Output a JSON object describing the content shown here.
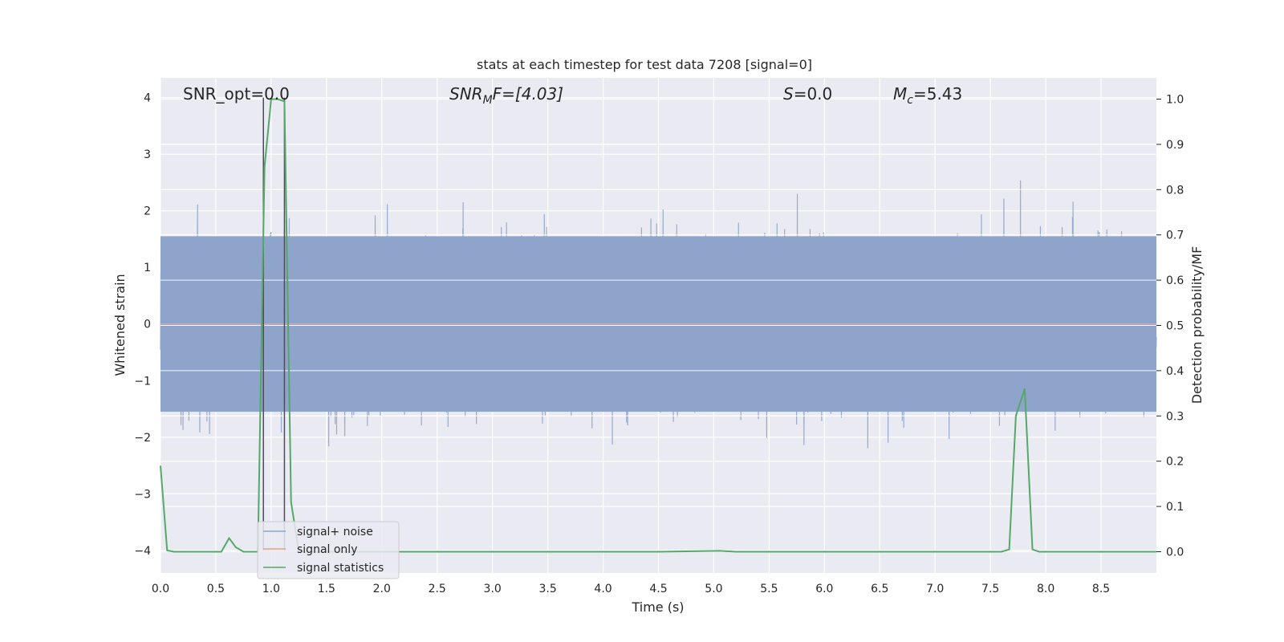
{
  "chart_data": {
    "type": "line",
    "title": "stats at each timestep for test data 7208 [signal=0]",
    "xlabel": "Time (s)",
    "ylabel": "Whitened strain",
    "ylabel_right": "Detection probability/MF",
    "xlim": [
      0.0,
      9.0
    ],
    "ylim": [
      -4.4,
      4.35
    ],
    "ylim_right": [
      -0.047,
      1.047
    ],
    "x_ticks": [
      "0.0",
      "0.5",
      "1.0",
      "1.5",
      "2.0",
      "2.5",
      "3.0",
      "3.5",
      "4.0",
      "4.5",
      "5.0",
      "5.5",
      "6.0",
      "6.5",
      "7.0",
      "7.5",
      "8.0",
      "8.5"
    ],
    "y_ticks": [
      "4",
      "3",
      "2",
      "1",
      "0",
      "−1",
      "−2",
      "−3",
      "−4"
    ],
    "y_ticks_right": [
      "1.0",
      "0.9",
      "0.8",
      "0.7",
      "0.6",
      "0.5",
      "0.4",
      "0.3",
      "0.2",
      "0.1",
      "0.0"
    ],
    "grid": true,
    "legend_position": "lower-left",
    "annotations": {
      "snr_opt": "SNR_opt=0.0",
      "snr_mf_sym": "SNR",
      "snr_mf_sub": "M",
      "snr_mf_rest": "F=[4.03]",
      "s_sym": "S",
      "s_rest": "=0.0",
      "mc_sym": "M",
      "mc_sub": "c",
      "mc_rest": "=5.43"
    },
    "vertical_lines_x": [
      0.93,
      1.12
    ],
    "series": [
      {
        "name": "signal+ noise",
        "color": "#8fa4cb",
        "kind": "noise",
        "sample_rate_hz": 600,
        "envelope_abs": 1.55,
        "max": 4.0,
        "min": -4.0
      },
      {
        "name": "signal only",
        "color": "#e8a089",
        "x": [
          0.0,
          9.0
        ],
        "y": [
          0.0,
          0.0
        ]
      },
      {
        "name": "signal statistics",
        "color": "#55a868",
        "axis": "right",
        "x": [
          0.0,
          0.06,
          0.12,
          0.25,
          0.55,
          0.62,
          0.68,
          0.75,
          0.88,
          0.94,
          1.0,
          1.06,
          1.12,
          1.18,
          1.25,
          1.3,
          2.0,
          3.0,
          4.0,
          4.5,
          5.05,
          5.2,
          6.0,
          7.0,
          7.6,
          7.67,
          7.73,
          7.81,
          7.88,
          7.94,
          8.5,
          9.0
        ],
        "y": [
          0.19,
          0.003,
          0.0,
          0.0,
          0.0,
          0.03,
          0.01,
          0.0,
          0.0,
          0.85,
          1.0,
          1.0,
          0.995,
          0.11,
          0.0,
          0.0,
          0.0,
          0.0,
          0.0,
          0.0,
          0.002,
          0.0,
          0.0,
          0.0,
          0.0,
          0.005,
          0.3,
          0.36,
          0.005,
          0.0,
          0.0,
          0.0
        ]
      }
    ]
  }
}
